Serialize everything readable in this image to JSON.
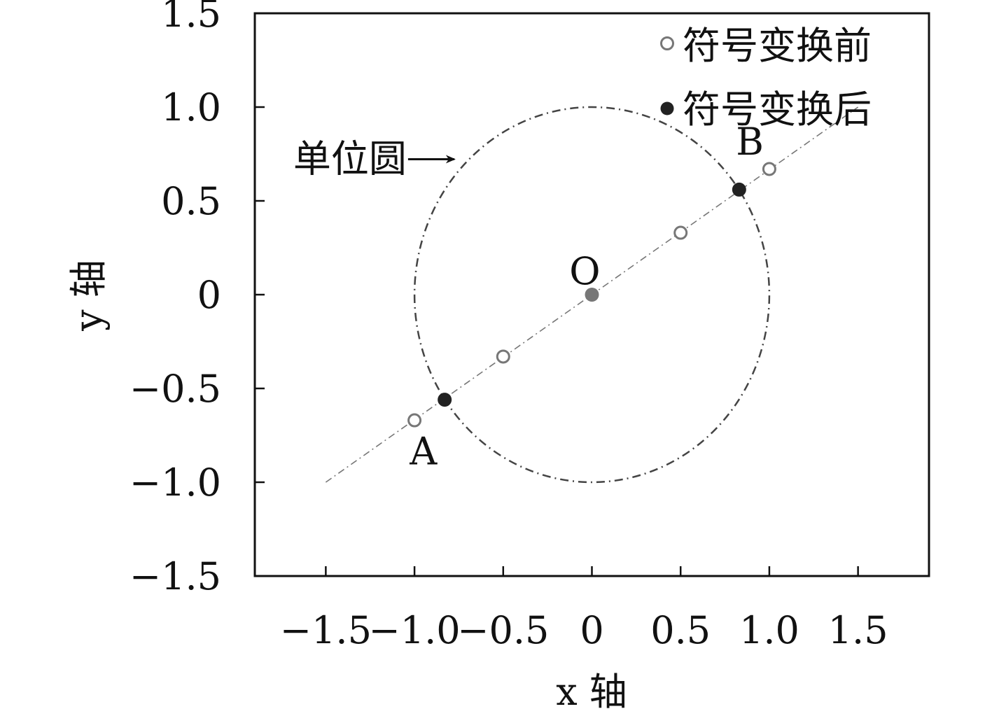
{
  "chart_data": {
    "type": "scatter",
    "xlabel": "x 轴",
    "ylabel": "y 轴",
    "xlim": [
      -1.9,
      1.9
    ],
    "ylim": [
      -1.5,
      1.5
    ],
    "x_ticks": [
      -1.5,
      -1.0,
      -0.5,
      0,
      0.5,
      1.0,
      1.5
    ],
    "x_tick_labels": [
      "−1.5",
      "−1.0",
      "−0.5",
      "0",
      "0.5",
      "1.0",
      "1.5"
    ],
    "y_ticks": [
      -1.5,
      -1.0,
      -0.5,
      0,
      0.5,
      1.0,
      1.5
    ],
    "y_tick_labels": [
      "−1.5",
      "−1.0",
      "−0.5",
      "0",
      "0.5",
      "1.0",
      "1.5"
    ],
    "grid": false,
    "legend_position": "top-right",
    "series": [
      {
        "name": "符号变换前",
        "marker": "hollow-circle",
        "color": "#777777",
        "points": [
          {
            "x": -1.0,
            "y": -0.67
          },
          {
            "x": -0.5,
            "y": -0.33
          },
          {
            "x": 0.5,
            "y": 0.33
          },
          {
            "x": 1.0,
            "y": 0.67
          }
        ]
      },
      {
        "name": "符号变换后",
        "marker": "filled-circle",
        "color": "#222222",
        "points": [
          {
            "x": -0.83,
            "y": -0.56
          },
          {
            "x": 0.83,
            "y": 0.56
          }
        ]
      }
    ],
    "origin_point": {
      "x": 0,
      "y": 0,
      "color": "#777777"
    },
    "line": {
      "x": [
        -1.5,
        1.5
      ],
      "y": [
        -1.0,
        1.0
      ],
      "style": "dash-dot",
      "color": "#777777"
    },
    "unit_circle": {
      "center": [
        0,
        0
      ],
      "radius": 1,
      "style": "dash-dot",
      "color": "#444444"
    },
    "annotations": [
      {
        "text": "单位圆",
        "arrow": true,
        "x": -0.76,
        "y": 0.67
      },
      {
        "text": "A",
        "x": -0.95,
        "y": -0.83
      },
      {
        "text": "B",
        "x": 0.89,
        "y": 0.82
      },
      {
        "text": "O",
        "x": -0.04,
        "y": 0.13
      }
    ]
  }
}
